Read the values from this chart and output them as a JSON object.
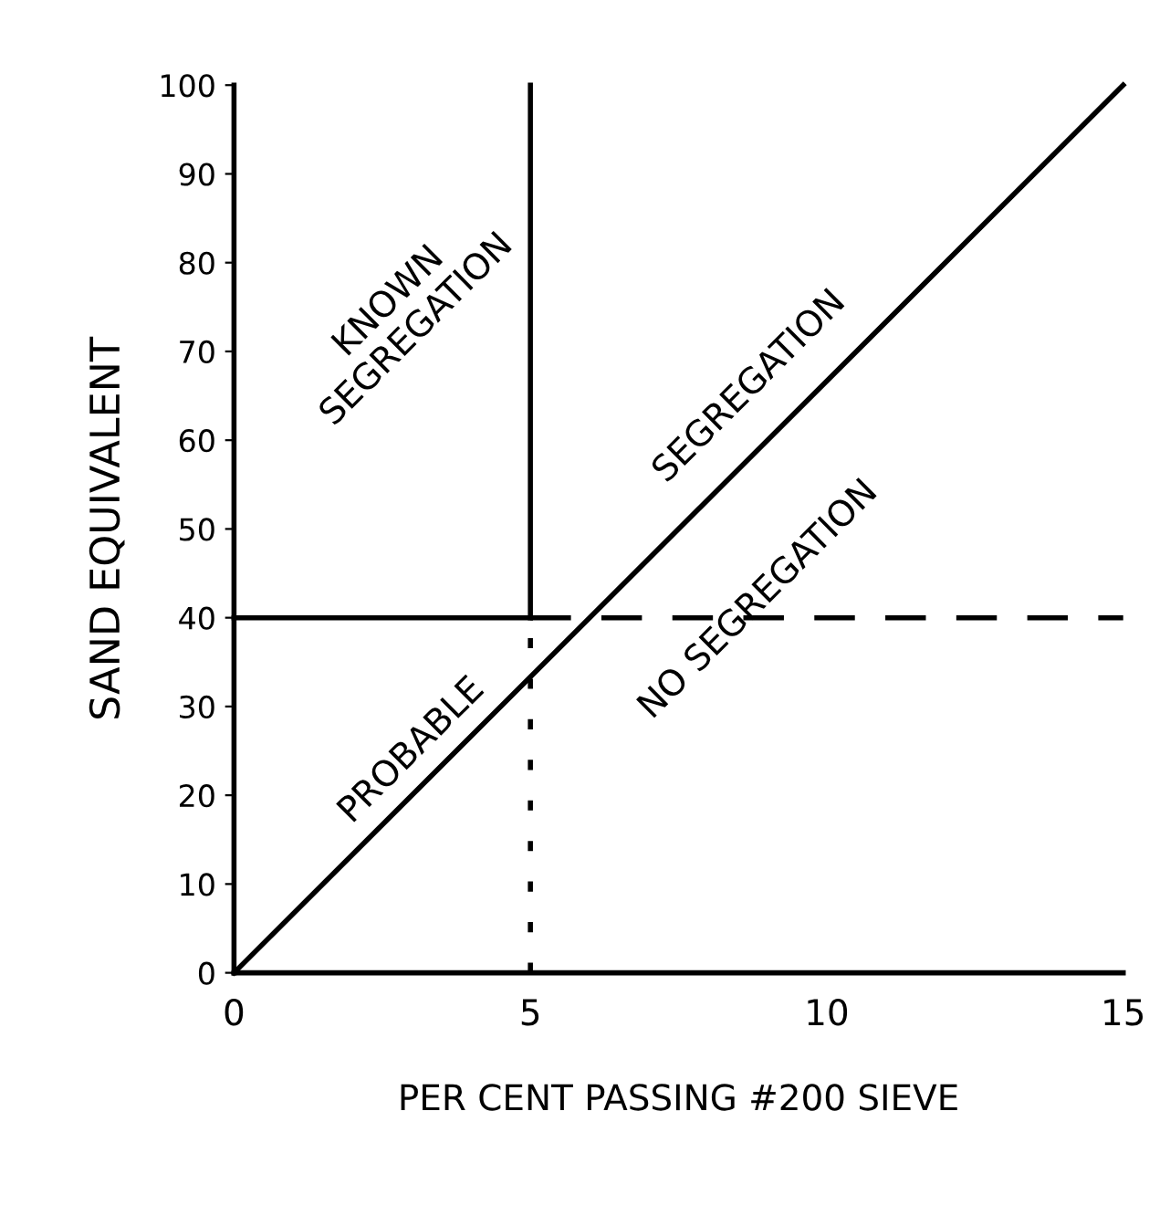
{
  "chart_data": {
    "type": "line",
    "xlabel": "PER CENT PASSING #200 SIEVE",
    "ylabel": "SAND EQUIVALENT",
    "xlim": [
      0,
      15
    ],
    "xticks": [
      0,
      5,
      10,
      15
    ],
    "ylim": [
      0,
      100
    ],
    "yticks": [
      0,
      10,
      20,
      30,
      40,
      50,
      60,
      70,
      80,
      90,
      100
    ],
    "grid": false,
    "series": [
      {
        "color": "#000000",
        "x": [
          0,
          15
        ],
        "values": [
          0,
          100
        ],
        "line_style": "solid"
      },
      {
        "color": "#000000",
        "x": [
          5,
          5
        ],
        "values": [
          40,
          100
        ],
        "line_style": "solid"
      },
      {
        "color": "#000000",
        "x": [
          5,
          5
        ],
        "values": [
          0,
          40
        ],
        "line_style": "dotted"
      },
      {
        "color": "#000000",
        "x": [
          0,
          5
        ],
        "values": [
          40,
          40
        ],
        "line_style": "solid"
      },
      {
        "color": "#000000",
        "x": [
          5,
          15
        ],
        "values": [
          40,
          40
        ],
        "line_style": "dashed"
      }
    ],
    "annotations": [
      "KNOWN\nSEGREGATION",
      "PROBABLE",
      "SEGREGATION",
      "NO SEGREGATION"
    ]
  }
}
